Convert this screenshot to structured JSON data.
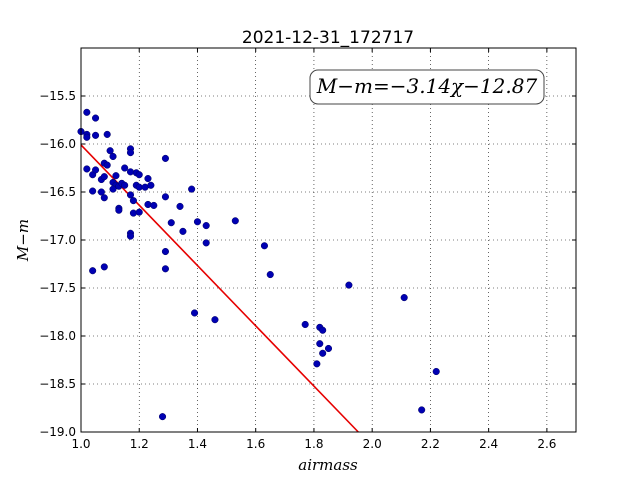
{
  "chart_data": {
    "type": "scatter",
    "title": "2021-12-31_172717",
    "xlabel": "airmass",
    "ylabel": "M−m",
    "xlim": [
      1.0,
      2.7
    ],
    "ylim": [
      -19.0,
      -15.0
    ],
    "y_inverted": true,
    "grid": true,
    "x_ticks": [
      1.0,
      1.2,
      1.4,
      1.6,
      1.8,
      2.0,
      2.2,
      2.4,
      2.6
    ],
    "x_tick_labels": [
      "1.0",
      "1.2",
      "1.4",
      "1.6",
      "1.8",
      "2.0",
      "2.2",
      "2.4",
      "2.6"
    ],
    "y_ticks": [
      -15.5,
      -16.0,
      -16.5,
      -17.0,
      -17.5,
      -18.0,
      -18.5,
      -19.0
    ],
    "y_tick_labels": [
      "−15.5",
      "−16.0",
      "−16.5",
      "−17.0",
      "−17.5",
      "−18.0",
      "−18.5",
      "−19.0"
    ],
    "annotation": "M−m=−3.14χ−12.87",
    "fit": {
      "slope": -3.14,
      "intercept": -12.87,
      "color": "#e60000"
    },
    "point_color": "#0000b3",
    "points": [
      {
        "x": 1.0,
        "y": -15.87
      },
      {
        "x": 1.02,
        "y": -15.67
      },
      {
        "x": 1.02,
        "y": -15.9
      },
      {
        "x": 1.02,
        "y": -15.93
      },
      {
        "x": 1.05,
        "y": -15.73
      },
      {
        "x": 1.05,
        "y": -15.91
      },
      {
        "x": 1.09,
        "y": -15.9
      },
      {
        "x": 1.02,
        "y": -16.26
      },
      {
        "x": 1.04,
        "y": -16.32
      },
      {
        "x": 1.05,
        "y": -16.27
      },
      {
        "x": 1.04,
        "y": -16.49
      },
      {
        "x": 1.07,
        "y": -16.37
      },
      {
        "x": 1.08,
        "y": -16.2
      },
      {
        "x": 1.09,
        "y": -16.22
      },
      {
        "x": 1.08,
        "y": -16.34
      },
      {
        "x": 1.07,
        "y": -16.5
      },
      {
        "x": 1.08,
        "y": -16.56
      },
      {
        "x": 1.1,
        "y": -16.07
      },
      {
        "x": 1.11,
        "y": -16.13
      },
      {
        "x": 1.11,
        "y": -16.4
      },
      {
        "x": 1.12,
        "y": -16.33
      },
      {
        "x": 1.12,
        "y": -16.43
      },
      {
        "x": 1.11,
        "y": -16.47
      },
      {
        "x": 1.13,
        "y": -16.44
      },
      {
        "x": 1.14,
        "y": -16.41
      },
      {
        "x": 1.15,
        "y": -16.25
      },
      {
        "x": 1.15,
        "y": -16.43
      },
      {
        "x": 1.13,
        "y": -16.67
      },
      {
        "x": 1.13,
        "y": -16.69
      },
      {
        "x": 1.17,
        "y": -16.05
      },
      {
        "x": 1.17,
        "y": -16.09
      },
      {
        "x": 1.17,
        "y": -16.29
      },
      {
        "x": 1.19,
        "y": -16.3
      },
      {
        "x": 1.2,
        "y": -16.32
      },
      {
        "x": 1.17,
        "y": -16.53
      },
      {
        "x": 1.18,
        "y": -16.59
      },
      {
        "x": 1.19,
        "y": -16.43
      },
      {
        "x": 1.2,
        "y": -16.45
      },
      {
        "x": 1.22,
        "y": -16.45
      },
      {
        "x": 1.23,
        "y": -16.36
      },
      {
        "x": 1.24,
        "y": -16.43
      },
      {
        "x": 1.18,
        "y": -16.72
      },
      {
        "x": 1.2,
        "y": -16.71
      },
      {
        "x": 1.23,
        "y": -16.63
      },
      {
        "x": 1.25,
        "y": -16.64
      },
      {
        "x": 1.17,
        "y": -16.93
      },
      {
        "x": 1.17,
        "y": -16.96
      },
      {
        "x": 1.29,
        "y": -16.15
      },
      {
        "x": 1.29,
        "y": -16.55
      },
      {
        "x": 1.31,
        "y": -16.82
      },
      {
        "x": 1.34,
        "y": -16.65
      },
      {
        "x": 1.35,
        "y": -16.91
      },
      {
        "x": 1.38,
        "y": -16.47
      },
      {
        "x": 1.4,
        "y": -16.81
      },
      {
        "x": 1.43,
        "y": -16.85
      },
      {
        "x": 1.43,
        "y": -17.03
      },
      {
        "x": 1.29,
        "y": -17.12
      },
      {
        "x": 1.29,
        "y": -17.3
      },
      {
        "x": 1.04,
        "y": -17.32
      },
      {
        "x": 1.08,
        "y": -17.28
      },
      {
        "x": 1.39,
        "y": -17.76
      },
      {
        "x": 1.46,
        "y": -17.83
      },
      {
        "x": 1.53,
        "y": -16.8
      },
      {
        "x": 1.63,
        "y": -17.06
      },
      {
        "x": 1.65,
        "y": -17.36
      },
      {
        "x": 1.77,
        "y": -17.88
      },
      {
        "x": 1.82,
        "y": -17.91
      },
      {
        "x": 1.83,
        "y": -17.94
      },
      {
        "x": 1.82,
        "y": -18.08
      },
      {
        "x": 1.85,
        "y": -18.13
      },
      {
        "x": 1.83,
        "y": -18.18
      },
      {
        "x": 1.81,
        "y": -18.29
      },
      {
        "x": 1.92,
        "y": -17.47
      },
      {
        "x": 2.11,
        "y": -17.6
      },
      {
        "x": 2.22,
        "y": -18.37
      },
      {
        "x": 2.17,
        "y": -18.77
      },
      {
        "x": 1.28,
        "y": -18.84
      }
    ]
  }
}
